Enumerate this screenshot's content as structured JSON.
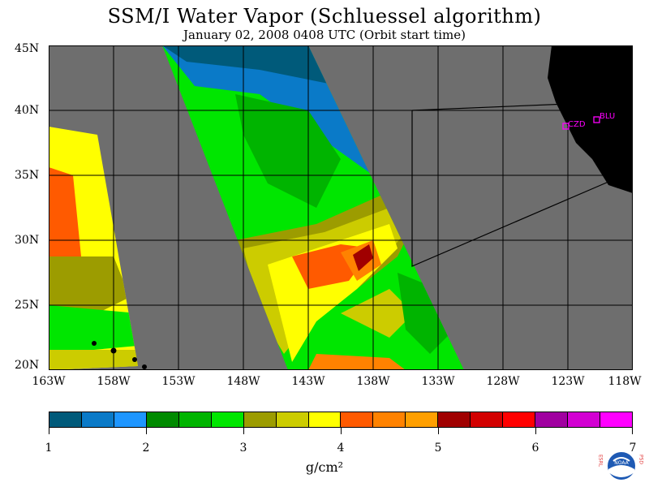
{
  "title": "SSM/I Water Vapor (Schluessel algorithm)",
  "subtitle": "January 02, 2008  0408 UTC  (Orbit start time)",
  "lat_labels": [
    "45N",
    "40N",
    "35N",
    "30N",
    "25N",
    "20N"
  ],
  "lon_labels": [
    "163W",
    "158W",
    "153W",
    "148W",
    "143W",
    "138W",
    "133W",
    "128W",
    "123W",
    "118W"
  ],
  "stations": [
    "CZD",
    "BLU"
  ],
  "colorbar": {
    "colors": [
      "#005a7a",
      "#0a7ac8",
      "#1e96ff",
      "#008a00",
      "#00b400",
      "#00e600",
      "#9c9c00",
      "#cccc00",
      "#ffff00",
      "#ff5a00",
      "#ff8200",
      "#ff9f00",
      "#a00000",
      "#d20000",
      "#ff0000",
      "#a000a0",
      "#d200d2",
      "#ff00ff"
    ],
    "tick_labels": [
      "1",
      "2",
      "3",
      "4",
      "5",
      "6",
      "7"
    ],
    "unit": "g/cm²"
  },
  "logo_text": {
    "left": "ESRL",
    "right": "PSD",
    "center": "NOAA"
  }
}
